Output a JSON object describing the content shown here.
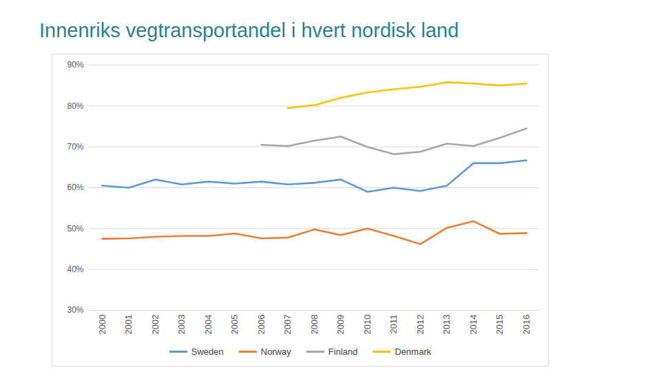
{
  "chart_data": {
    "type": "line",
    "title": "Innenriks vegtransportandel i hvert nordisk land",
    "x": [
      2000,
      2001,
      2002,
      2003,
      2004,
      2005,
      2006,
      2007,
      2008,
      2009,
      2010,
      2011,
      2012,
      2013,
      2014,
      2015,
      2016
    ],
    "series": [
      {
        "name": "Sweden",
        "color": "#5b9bd5",
        "values": [
          60.5,
          60.0,
          62.0,
          60.8,
          61.5,
          61.0,
          61.5,
          60.8,
          61.2,
          62.0,
          59.0,
          60.0,
          59.2,
          60.5,
          66.0,
          66.0,
          66.7
        ]
      },
      {
        "name": "Norway",
        "color": "#ed7d31",
        "values": [
          47.5,
          47.6,
          48.0,
          48.2,
          48.2,
          48.8,
          47.6,
          47.8,
          49.8,
          48.4,
          50.0,
          48.2,
          46.2,
          50.2,
          51.8,
          48.7,
          48.9
        ]
      },
      {
        "name": "Finland",
        "color": "#a5a5a5",
        "values": [
          null,
          null,
          null,
          null,
          null,
          null,
          70.5,
          70.2,
          71.5,
          72.5,
          70.0,
          68.2,
          68.8,
          70.8,
          70.2,
          72.2,
          74.5
        ]
      },
      {
        "name": "Denmark",
        "color": "#ffc000",
        "values": [
          null,
          null,
          null,
          null,
          null,
          null,
          null,
          79.5,
          80.2,
          82.0,
          83.3,
          84.1,
          84.7,
          85.8,
          85.5,
          85.0,
          85.5
        ]
      }
    ],
    "xlim": [
      2000,
      2016
    ],
    "xticks": [
      2000,
      2001,
      2002,
      2003,
      2004,
      2005,
      2006,
      2007,
      2008,
      2009,
      2010,
      2011,
      2012,
      2013,
      2014,
      2015,
      2016
    ],
    "ylim": [
      30,
      90
    ],
    "yticks": [
      {
        "value": 30,
        "label": "30%"
      },
      {
        "value": 40,
        "label": "40%"
      },
      {
        "value": 50,
        "label": "50%"
      },
      {
        "value": 60,
        "label": "60%"
      },
      {
        "value": 70,
        "label": "70%"
      },
      {
        "value": 80,
        "label": "80%"
      },
      {
        "value": 90,
        "label": "90%"
      }
    ],
    "grid": true,
    "legend": "bottom"
  }
}
